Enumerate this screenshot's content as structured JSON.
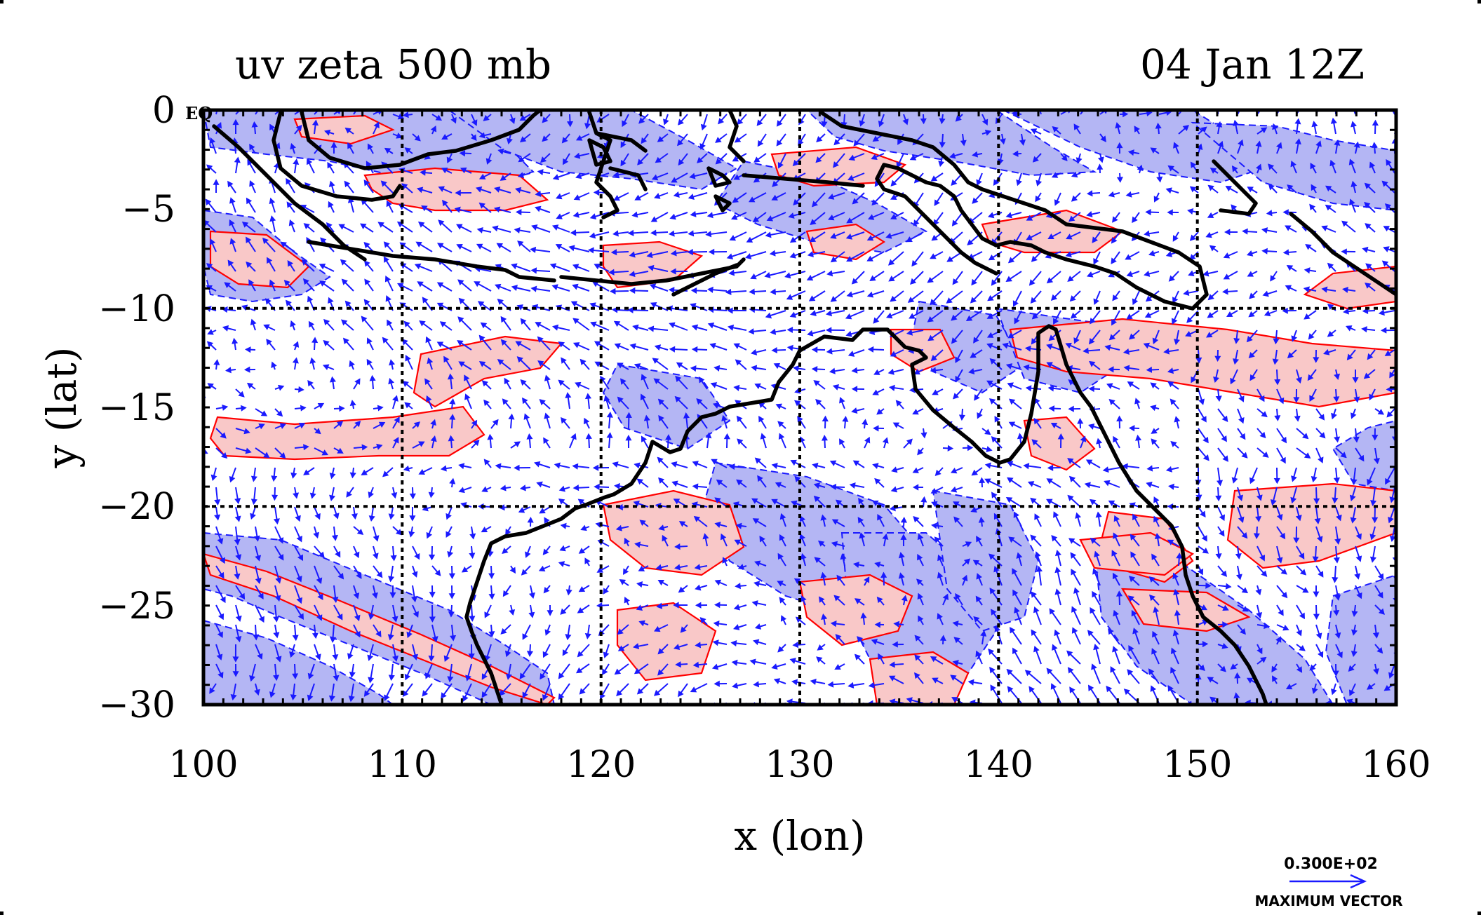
{
  "chart_data": {
    "type": "map",
    "title_left": "uv zeta 500 mb",
    "title_right": "04 Jan 12Z",
    "xlabel": "x (lon)",
    "ylabel": "y (lat)",
    "x_ticks": [
      "100",
      "110",
      "120",
      "130",
      "140",
      "150",
      "160"
    ],
    "y_ticks": [
      "0",
      "−5",
      "−10",
      "−15",
      "−20",
      "−25",
      "−30"
    ],
    "corner_label": "EQ",
    "xlim": [
      100,
      160
    ],
    "ylim": [
      -30,
      0
    ],
    "vector_reference_value": "0.300E+02",
    "vector_reference_label": "MAXIMUM VECTOR",
    "colors": {
      "vector": "#1a1aff",
      "positive_contour": "#ff0000",
      "positive_fill": "#f9c8c8",
      "negative_fill": "#b4b6f4",
      "coastline": "#000000",
      "grid": "#000000"
    }
  }
}
